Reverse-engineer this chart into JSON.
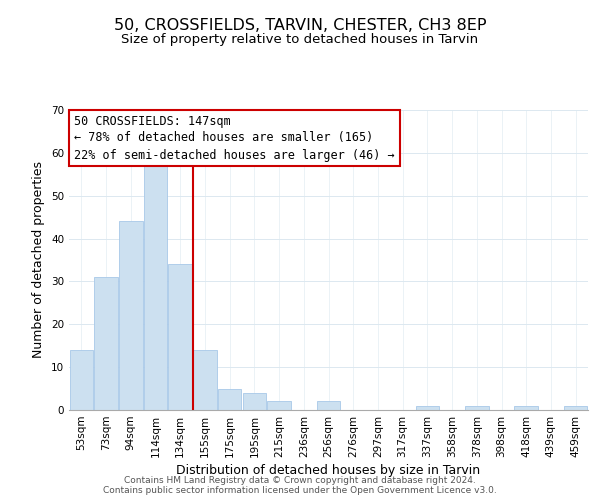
{
  "title": "50, CROSSFIELDS, TARVIN, CHESTER, CH3 8EP",
  "subtitle": "Size of property relative to detached houses in Tarvin",
  "xlabel": "Distribution of detached houses by size in Tarvin",
  "ylabel": "Number of detached properties",
  "bin_labels": [
    "53sqm",
    "73sqm",
    "94sqm",
    "114sqm",
    "134sqm",
    "155sqm",
    "175sqm",
    "195sqm",
    "215sqm",
    "236sqm",
    "256sqm",
    "276sqm",
    "297sqm",
    "317sqm",
    "337sqm",
    "358sqm",
    "378sqm",
    "398sqm",
    "418sqm",
    "439sqm",
    "459sqm"
  ],
  "bar_heights": [
    14,
    31,
    44,
    57,
    34,
    14,
    5,
    4,
    2,
    0,
    2,
    0,
    0,
    0,
    1,
    0,
    1,
    0,
    1,
    0,
    1
  ],
  "bar_color": "#cce0f0",
  "bar_edge_color": "#a8c8e8",
  "vline_color": "#cc0000",
  "ylim": [
    0,
    70
  ],
  "annotation_text": "50 CROSSFIELDS: 147sqm\n← 78% of detached houses are smaller (165)\n22% of semi-detached houses are larger (46) →",
  "annotation_box_color": "#ffffff",
  "annotation_box_edge": "#cc0000",
  "footer1": "Contains HM Land Registry data © Crown copyright and database right 2024.",
  "footer2": "Contains public sector information licensed under the Open Government Licence v3.0.",
  "title_fontsize": 11.5,
  "subtitle_fontsize": 9.5,
  "axis_label_fontsize": 9,
  "tick_fontsize": 7.5,
  "annotation_fontsize": 8.5,
  "footer_fontsize": 6.5,
  "grid_color": "#dce8f0"
}
